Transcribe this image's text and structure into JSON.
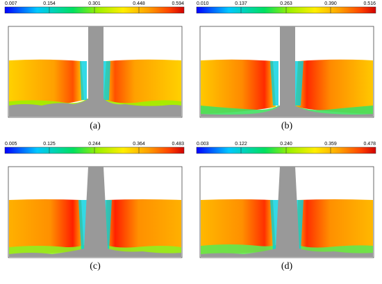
{
  "panels": [
    {
      "label": "(a)",
      "colorbar_ticks": [
        "0.007",
        "0.154",
        "0.301",
        "0.448",
        "0.594"
      ]
    },
    {
      "label": "(b)",
      "colorbar_ticks": [
        "0.010",
        "0.137",
        "0.263",
        "0.390",
        "0.516"
      ]
    },
    {
      "label": "(c)",
      "colorbar_ticks": [
        "0.005",
        "0.125",
        "0.244",
        "0.364",
        "0.483"
      ]
    },
    {
      "label": "(d)",
      "colorbar_ticks": [
        "0.003",
        "0.122",
        "0.240",
        "0.359",
        "0.478"
      ]
    }
  ],
  "colors": {
    "colormap": [
      "#0000ff",
      "#00c8ff",
      "#00e060",
      "#9ef000",
      "#ffee00",
      "#ffa000",
      "#ff4000",
      "#d00000"
    ],
    "shaft": "#999999",
    "frame": "#444444"
  }
}
